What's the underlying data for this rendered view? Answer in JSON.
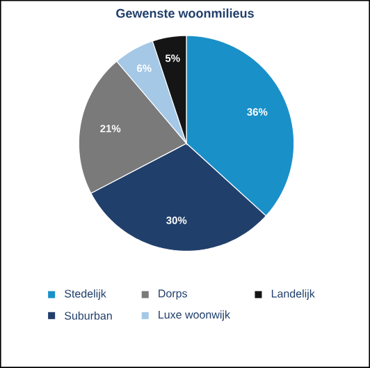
{
  "chart_data": {
    "type": "pie",
    "title": "Gewenste woonmilieus",
    "categories": [
      "Stedelijk",
      "Suburban",
      "Dorps",
      "Luxe woonwijk",
      "Landelijk"
    ],
    "values": [
      36,
      30,
      21,
      6,
      5
    ],
    "colors": [
      "#1a90c8",
      "#213f6b",
      "#7a7a7a",
      "#a4c8e6",
      "#151515"
    ],
    "value_labels": [
      "36%",
      "30%",
      "21%",
      "6%",
      "5%"
    ],
    "legend": "bottom"
  }
}
